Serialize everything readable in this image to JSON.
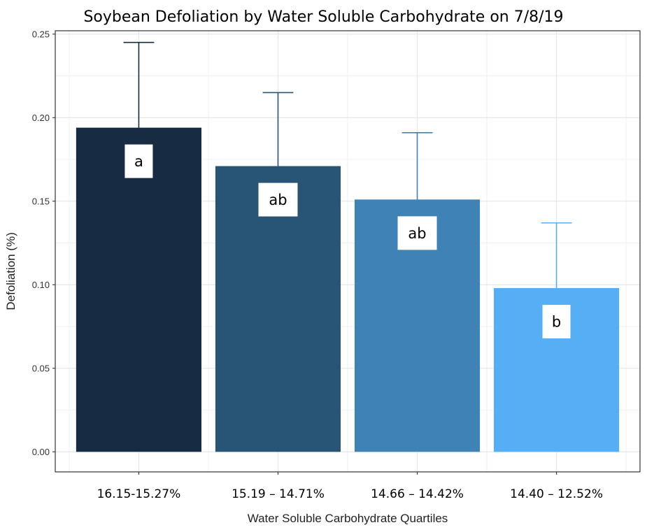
{
  "chart_data": {
    "type": "bar",
    "title": "Soybean Defoliation by Water Soluble Carbohydrate on 7/8/19",
    "xlabel": "Water Soluble Carbohydrate Quartiles",
    "ylabel": "Defoliation (%)",
    "ylim": [
      -0.012,
      0.252
    ],
    "yticks": [
      "0.00",
      "0.05",
      "0.10",
      "0.15",
      "0.20",
      "0.25"
    ],
    "grid": true,
    "categories": [
      "16.15-15.27%",
      "15.19 – 14.71%",
      "14.66 – 14.42%",
      "14.40 – 12.52%"
    ],
    "values": [
      0.194,
      0.171,
      0.151,
      0.098
    ],
    "error_upper": [
      0.245,
      0.215,
      0.191,
      0.137
    ],
    "significance_letters": [
      "a",
      "ab",
      "ab",
      "b"
    ],
    "colors": [
      "#172b42",
      "#285475",
      "#3f82b6",
      "#56aef4"
    ]
  }
}
